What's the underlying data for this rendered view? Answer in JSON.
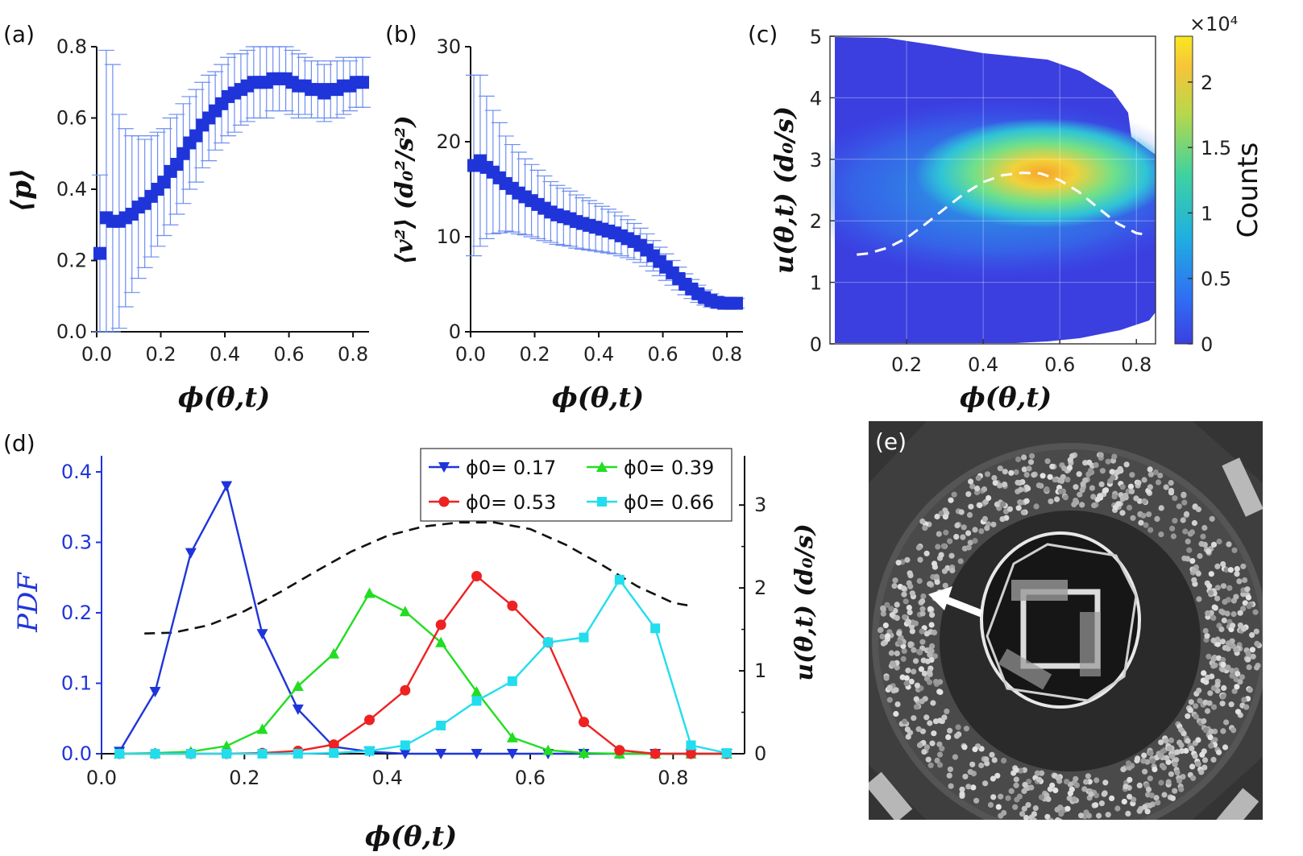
{
  "chart_data": [
    {
      "panel": "(a)",
      "type": "scatter",
      "xlabel": "ϕ(θ,t)",
      "ylabel": "⟨p⟩",
      "xlim": [
        0,
        0.85
      ],
      "ylim": [
        0,
        0.8
      ],
      "xticks": [
        "0.0",
        "0.2",
        "0.4",
        "0.6",
        "0.8"
      ],
      "yticks": [
        "0.0",
        "0.2",
        "0.4",
        "0.6",
        "0.8"
      ],
      "x": [
        0.01,
        0.03,
        0.05,
        0.07,
        0.09,
        0.11,
        0.13,
        0.15,
        0.17,
        0.19,
        0.21,
        0.23,
        0.25,
        0.27,
        0.29,
        0.31,
        0.33,
        0.35,
        0.37,
        0.39,
        0.41,
        0.43,
        0.45,
        0.47,
        0.49,
        0.51,
        0.53,
        0.55,
        0.57,
        0.59,
        0.61,
        0.63,
        0.65,
        0.67,
        0.69,
        0.71,
        0.73,
        0.75,
        0.77,
        0.79,
        0.81,
        0.83
      ],
      "y": [
        0.22,
        0.32,
        0.31,
        0.31,
        0.32,
        0.33,
        0.35,
        0.36,
        0.38,
        0.4,
        0.42,
        0.45,
        0.47,
        0.5,
        0.53,
        0.55,
        0.58,
        0.6,
        0.62,
        0.64,
        0.66,
        0.67,
        0.68,
        0.69,
        0.7,
        0.7,
        0.7,
        0.71,
        0.71,
        0.71,
        0.7,
        0.69,
        0.69,
        0.68,
        0.68,
        0.67,
        0.68,
        0.68,
        0.69,
        0.69,
        0.7,
        0.7
      ],
      "err": [
        0.22,
        0.47,
        0.44,
        0.3,
        0.25,
        0.22,
        0.2,
        0.18,
        0.17,
        0.16,
        0.15,
        0.15,
        0.14,
        0.14,
        0.13,
        0.13,
        0.12,
        0.12,
        0.11,
        0.11,
        0.11,
        0.11,
        0.1,
        0.1,
        0.1,
        0.1,
        0.1,
        0.09,
        0.09,
        0.09,
        0.09,
        0.09,
        0.08,
        0.08,
        0.08,
        0.08,
        0.08,
        0.08,
        0.08,
        0.07,
        0.07,
        0.07
      ]
    },
    {
      "panel": "(b)",
      "type": "scatter",
      "xlabel": "ϕ(θ,t)",
      "ylabel": "⟨v²⟩ (d₀²/s²)",
      "xlim": [
        0,
        0.85
      ],
      "ylim": [
        0,
        30
      ],
      "xticks": [
        "0.0",
        "0.2",
        "0.4",
        "0.6",
        "0.8"
      ],
      "yticks": [
        "0",
        "10",
        "20",
        "30"
      ],
      "x": [
        0.01,
        0.03,
        0.05,
        0.07,
        0.09,
        0.11,
        0.13,
        0.15,
        0.17,
        0.19,
        0.21,
        0.23,
        0.25,
        0.27,
        0.29,
        0.31,
        0.33,
        0.35,
        0.37,
        0.39,
        0.41,
        0.43,
        0.45,
        0.47,
        0.49,
        0.51,
        0.53,
        0.55,
        0.57,
        0.59,
        0.61,
        0.63,
        0.65,
        0.67,
        0.69,
        0.71,
        0.73,
        0.75,
        0.77,
        0.79,
        0.81,
        0.83
      ],
      "y": [
        17.5,
        18.0,
        17.3,
        16.8,
        16.2,
        15.6,
        15.1,
        14.6,
        14.2,
        13.8,
        13.4,
        13.0,
        12.6,
        12.3,
        12.1,
        11.9,
        11.6,
        11.4,
        11.2,
        11.0,
        10.8,
        10.6,
        10.4,
        10.1,
        9.8,
        9.5,
        9.1,
        8.6,
        8.0,
        7.4,
        6.8,
        6.2,
        5.6,
        5.0,
        4.5,
        4.0,
        3.6,
        3.3,
        3.1,
        3.0,
        3.0,
        3.0
      ],
      "err": [
        9.5,
        9.0,
        7.5,
        6.5,
        5.8,
        5.0,
        4.6,
        4.3,
        4.0,
        3.8,
        3.6,
        3.4,
        3.2,
        3.1,
        3.0,
        2.9,
        2.8,
        2.7,
        2.6,
        2.5,
        2.4,
        2.3,
        2.2,
        2.1,
        2.0,
        1.9,
        1.8,
        1.7,
        1.6,
        1.5,
        1.4,
        1.3,
        1.2,
        1.1,
        1.0,
        0.9,
        0.8,
        0.7,
        0.6,
        0.5,
        0.5,
        0.5
      ]
    },
    {
      "panel": "(c)",
      "type": "heatmap",
      "xlabel": "ϕ(θ,t)",
      "ylabel": "u(θ,t) (d₀/s)",
      "xlim": [
        0,
        0.85
      ],
      "ylim": [
        0,
        5
      ],
      "xticks": [
        "0.2",
        "0.4",
        "0.6",
        "0.8"
      ],
      "yticks": [
        "0",
        "1",
        "2",
        "3",
        "4",
        "5"
      ],
      "colorbar": {
        "label": "Counts",
        "exponent": "×10⁴",
        "ticks": [
          "0",
          "0.5",
          "1",
          "1.5",
          "2"
        ],
        "max": 2.35
      },
      "peak": {
        "x": 0.52,
        "y": 2.9
      },
      "dashed_curve": {
        "x": [
          0.07,
          0.1,
          0.15,
          0.2,
          0.25,
          0.3,
          0.35,
          0.4,
          0.45,
          0.5,
          0.55,
          0.6,
          0.65,
          0.7,
          0.75,
          0.8,
          0.82
        ],
        "y": [
          1.45,
          1.47,
          1.56,
          1.72,
          1.95,
          2.2,
          2.44,
          2.63,
          2.74,
          2.78,
          2.77,
          2.66,
          2.47,
          2.21,
          1.96,
          1.8,
          1.78
        ]
      }
    },
    {
      "panel": "(d)",
      "type": "line",
      "xlabel": "ϕ(θ,t)",
      "ylabel": "PDF",
      "ylabel_right": "u(θ,t) (d₀/s)",
      "xlim": [
        0,
        0.9
      ],
      "ylim": [
        0,
        0.4
      ],
      "ylim_right": [
        0,
        3.4
      ],
      "xticks": [
        "0.0",
        "0.2",
        "0.4",
        "0.6",
        "0.8"
      ],
      "yticks": [
        "0.0",
        "0.1",
        "0.2",
        "0.3",
        "0.4"
      ],
      "yticks_right": [
        "0",
        "1",
        "2",
        "3"
      ],
      "x": [
        0.025,
        0.075,
        0.125,
        0.175,
        0.225,
        0.275,
        0.325,
        0.375,
        0.425,
        0.475,
        0.525,
        0.575,
        0.625,
        0.675,
        0.725,
        0.775,
        0.825,
        0.875
      ],
      "series": [
        {
          "name": "ϕ0= 0.17",
          "color": "#1f35d9",
          "marker": "triangle-down",
          "values": [
            0.003,
            0.088,
            0.285,
            0.38,
            0.17,
            0.063,
            0.01,
            0.003,
            0,
            0,
            0,
            0,
            0,
            0,
            0,
            0,
            0,
            0
          ]
        },
        {
          "name": "ϕ0= 0.39",
          "color": "#22dd22",
          "marker": "triangle-up",
          "values": [
            0,
            0.001,
            0.003,
            0.011,
            0.035,
            0.096,
            0.142,
            0.228,
            0.202,
            0.158,
            0.088,
            0.023,
            0.005,
            0.001,
            0,
            0,
            0,
            0
          ]
        },
        {
          "name": "ϕ0= 0.53",
          "color": "#ee2222",
          "marker": "circle",
          "values": [
            0,
            0,
            0,
            0,
            0.001,
            0.004,
            0.013,
            0.048,
            0.09,
            0.183,
            0.252,
            0.21,
            0.158,
            0.045,
            0.005,
            0,
            0,
            0
          ]
        },
        {
          "name": "ϕ0= 0.66",
          "color": "#22ddee",
          "marker": "square",
          "values": [
            0,
            0,
            0,
            0,
            0,
            0,
            0.001,
            0.004,
            0.012,
            0.04,
            0.075,
            0.103,
            0.158,
            0.165,
            0.247,
            0.178,
            0.012,
            0.001
          ]
        }
      ],
      "dashed_u": {
        "x": [
          0.06,
          0.1,
          0.15,
          0.2,
          0.25,
          0.3,
          0.35,
          0.4,
          0.45,
          0.5,
          0.55,
          0.6,
          0.65,
          0.7,
          0.75,
          0.8,
          0.82
        ],
        "y": [
          1.45,
          1.46,
          1.55,
          1.72,
          1.95,
          2.2,
          2.44,
          2.63,
          2.74,
          2.79,
          2.79,
          2.71,
          2.52,
          2.28,
          2.02,
          1.82,
          1.79
        ]
      }
    }
  ],
  "panel_e": {
    "label": "(e)"
  },
  "colors": {
    "primary": "#1f35d9",
    "errorbar": "#6e8ef0",
    "pdf_axis": "#1f35d9"
  }
}
